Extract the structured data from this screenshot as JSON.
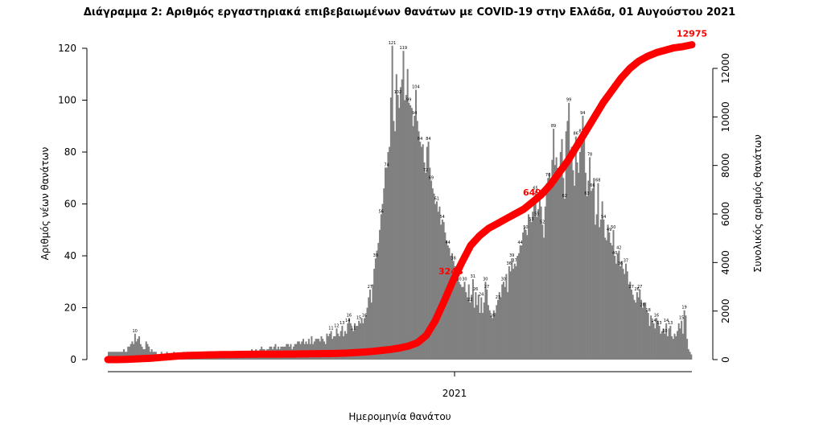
{
  "chart_data": {
    "type": "bar",
    "title": "Διάγραμμα 2: Αριθμός εργαστηριακά επιβεβαιωμένων θανάτων με COVID-19 στην Ελλάδα, 01 Αυγούστου 2021",
    "xlabel": "Ημερομηνία θανάτου",
    "ylabel": "Αριθμός νέων θανάτων",
    "ylabel_right": "Συνολικός αριθμός θανάτων",
    "x_tick_labels": [
      "2021"
    ],
    "ylim": [
      0,
      120
    ],
    "y_ticks": [
      0,
      20,
      40,
      60,
      80,
      100,
      120
    ],
    "ylim_right": [
      0,
      12000
    ],
    "y_ticks_right": [
      0,
      2000,
      4000,
      6000,
      8000,
      10000,
      12000
    ],
    "grid": false,
    "bar_color": "#808080",
    "line_color": "#ff0000",
    "series": [
      {
        "type": "bar",
        "values": [
          3,
          3,
          3,
          3,
          3,
          3,
          3,
          3,
          3,
          3,
          3,
          4,
          3,
          3,
          5,
          5,
          6,
          7,
          6,
          10,
          7,
          8,
          9,
          6,
          5,
          4,
          4,
          7,
          6,
          5,
          3,
          4,
          3,
          3,
          3,
          2,
          2,
          2,
          3,
          2,
          2,
          2,
          3,
          2,
          2,
          2,
          2,
          3,
          2,
          2,
          2,
          2,
          2,
          2,
          3,
          2,
          2,
          3,
          2,
          2,
          3,
          3,
          2,
          2,
          2,
          2,
          3,
          2,
          2,
          2,
          2,
          2,
          2,
          2,
          2,
          3,
          3,
          2,
          2,
          2,
          2,
          3,
          2,
          2,
          2,
          2,
          3,
          3,
          3,
          2,
          2,
          2,
          3,
          2,
          2,
          3,
          2,
          2,
          2,
          3,
          2,
          2,
          3,
          4,
          3,
          3,
          4,
          3,
          3,
          4,
          5,
          4,
          4,
          3,
          4,
          4,
          5,
          5,
          4,
          5,
          6,
          4,
          5,
          4,
          5,
          5,
          5,
          5,
          6,
          6,
          5,
          6,
          4,
          5,
          6,
          6,
          7,
          7,
          6,
          7,
          8,
          6,
          7,
          6,
          8,
          6,
          9,
          6,
          7,
          8,
          8,
          8,
          7,
          9,
          8,
          7,
          6,
          10,
          9,
          10,
          11,
          8,
          9,
          9,
          12,
          10,
          9,
          11,
          13,
          9,
          11,
          10,
          14,
          16,
          14,
          12,
          11,
          14,
          13,
          13,
          15,
          14,
          16,
          14,
          16,
          17,
          20,
          24,
          27,
          22,
          29,
          35,
          39,
          42,
          45,
          50,
          56,
          60,
          66,
          74,
          74,
          80,
          82,
          101,
          121,
          92,
          88,
          110,
          102,
          97,
          105,
          108,
          119,
          100,
          102,
          112,
          99,
          98,
          97,
          90,
          94,
          104,
          92,
          88,
          84,
          82,
          83,
          76,
          72,
          82,
          84,
          74,
          69,
          66,
          64,
          60,
          61,
          57,
          59,
          52,
          54,
          53,
          49,
          46,
          44,
          43,
          40,
          41,
          38,
          36,
          36,
          34,
          30,
          29,
          28,
          28,
          30,
          26,
          24,
          29,
          22,
          25,
          31,
          20,
          26,
          21,
          25,
          18,
          24,
          18,
          22,
          30,
          27,
          21,
          19,
          17,
          16,
          19,
          18,
          21,
          23,
          26,
          24,
          29,
          30,
          28,
          33,
          26,
          36,
          34,
          39,
          35,
          37,
          36,
          40,
          41,
          44,
          44,
          49,
          51,
          50,
          48,
          56,
          54,
          53,
          57,
          61,
          65,
          55,
          58,
          63,
          59,
          52,
          47,
          59,
          68,
          70,
          72,
          66,
          77,
          89,
          75,
          78,
          73,
          72,
          80,
          85,
          70,
          62,
          88,
          92,
          99,
          76,
          82,
          73,
          67,
          86,
          76,
          72,
          80,
          87,
          94,
          88,
          72,
          63,
          69,
          78,
          65,
          66,
          70,
          52,
          56,
          68,
          51,
          54,
          61,
          54,
          47,
          46,
          52,
          49,
          45,
          44,
          50,
          40,
          37,
          41,
          42,
          36,
          38,
          35,
          33,
          37,
          34,
          29,
          30,
          27,
          25,
          23,
          22,
          26,
          24,
          27,
          23,
          20,
          22,
          22,
          19,
          18,
          13,
          17,
          15,
          14,
          12,
          16,
          15,
          13,
          10,
          11,
          12,
          10,
          14,
          9,
          12,
          13,
          9,
          8,
          10,
          9,
          11,
          14,
          12,
          15,
          10,
          19,
          17,
          8,
          4,
          3,
          2
        ]
      },
      {
        "type": "line",
        "name": "cumulative",
        "values": [
          0,
          0,
          10,
          25,
          40,
          60,
          90,
          120,
          150,
          170,
          180,
          190,
          200,
          205,
          210,
          215,
          220,
          222,
          224,
          226,
          228,
          230,
          235,
          240,
          245,
          250,
          260,
          270,
          290,
          310,
          340,
          380,
          420,
          480,
          560,
          700,
          1000,
          1600,
          2400,
          3248,
          4000,
          4700,
          5100,
          5400,
          5600,
          5800,
          6000,
          6200,
          6495,
          6800,
          7200,
          7700,
          8200,
          8800,
          9400,
          10000,
          10600,
          11100,
          11600,
          12000,
          12300,
          12500,
          12650,
          12750,
          12850,
          12900,
          12975
        ]
      }
    ],
    "annotations": [
      "3248",
      "6495",
      "12975"
    ],
    "data_labels": [
      "121",
      "119",
      "110",
      "112",
      "99",
      "88",
      "81",
      "42",
      "74",
      "70",
      "73",
      "62",
      "61",
      "54",
      "53",
      "37",
      "29",
      "30",
      "31",
      "20",
      "18",
      "16",
      "39",
      "55",
      "47",
      "27",
      "22",
      "13",
      "19",
      "16",
      "10",
      "7",
      "8",
      "12",
      "14",
      "4",
      "3",
      "2"
    ]
  }
}
